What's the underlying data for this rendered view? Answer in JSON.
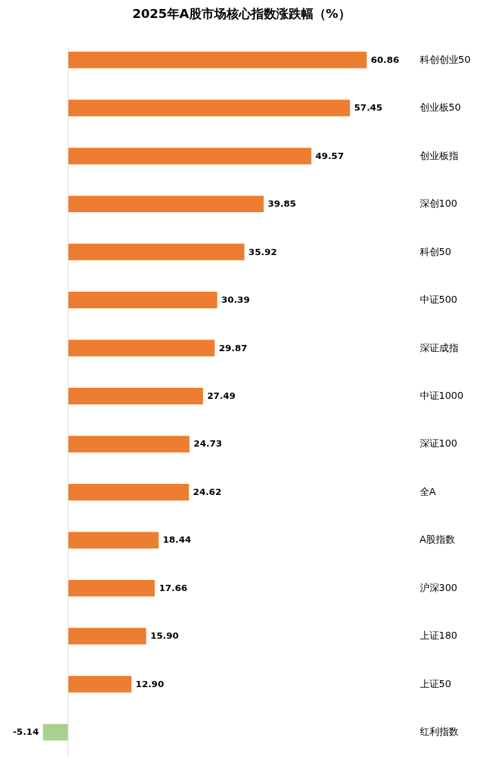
{
  "chart_data": {
    "type": "bar",
    "orientation": "horizontal",
    "title": "2025年A股市场核心指数涨跌幅（%）",
    "categories": [
      "科创创业50",
      "创业板50",
      "创业板指",
      "深创100",
      "科创50",
      "中证500",
      "深证成指",
      "中证1000",
      "深证100",
      "全A",
      "A股指数",
      "沪深300",
      "上证180",
      "上证50",
      "红利指数"
    ],
    "values": [
      60.86,
      57.45,
      49.57,
      39.85,
      35.92,
      30.39,
      29.87,
      27.49,
      24.73,
      24.62,
      18.44,
      17.66,
      15.9,
      12.9,
      -5.14
    ],
    "colors": [
      "#ed7d31",
      "#ed7d31",
      "#ed7d31",
      "#ed7d31",
      "#ed7d31",
      "#ed7d31",
      "#ed7d31",
      "#ed7d31",
      "#ed7d31",
      "#ed7d31",
      "#ed7d31",
      "#ed7d31",
      "#ed7d31",
      "#ed7d31",
      "#a9d18e"
    ],
    "value_labels": [
      "60.86",
      "57.45",
      "49.57",
      "39.85",
      "35.92",
      "30.39",
      "29.87",
      "27.49",
      "24.73",
      "24.62",
      "18.44",
      "17.66",
      "15.90",
      "12.90",
      "-5.14"
    ],
    "tick_labels": "y"
  }
}
